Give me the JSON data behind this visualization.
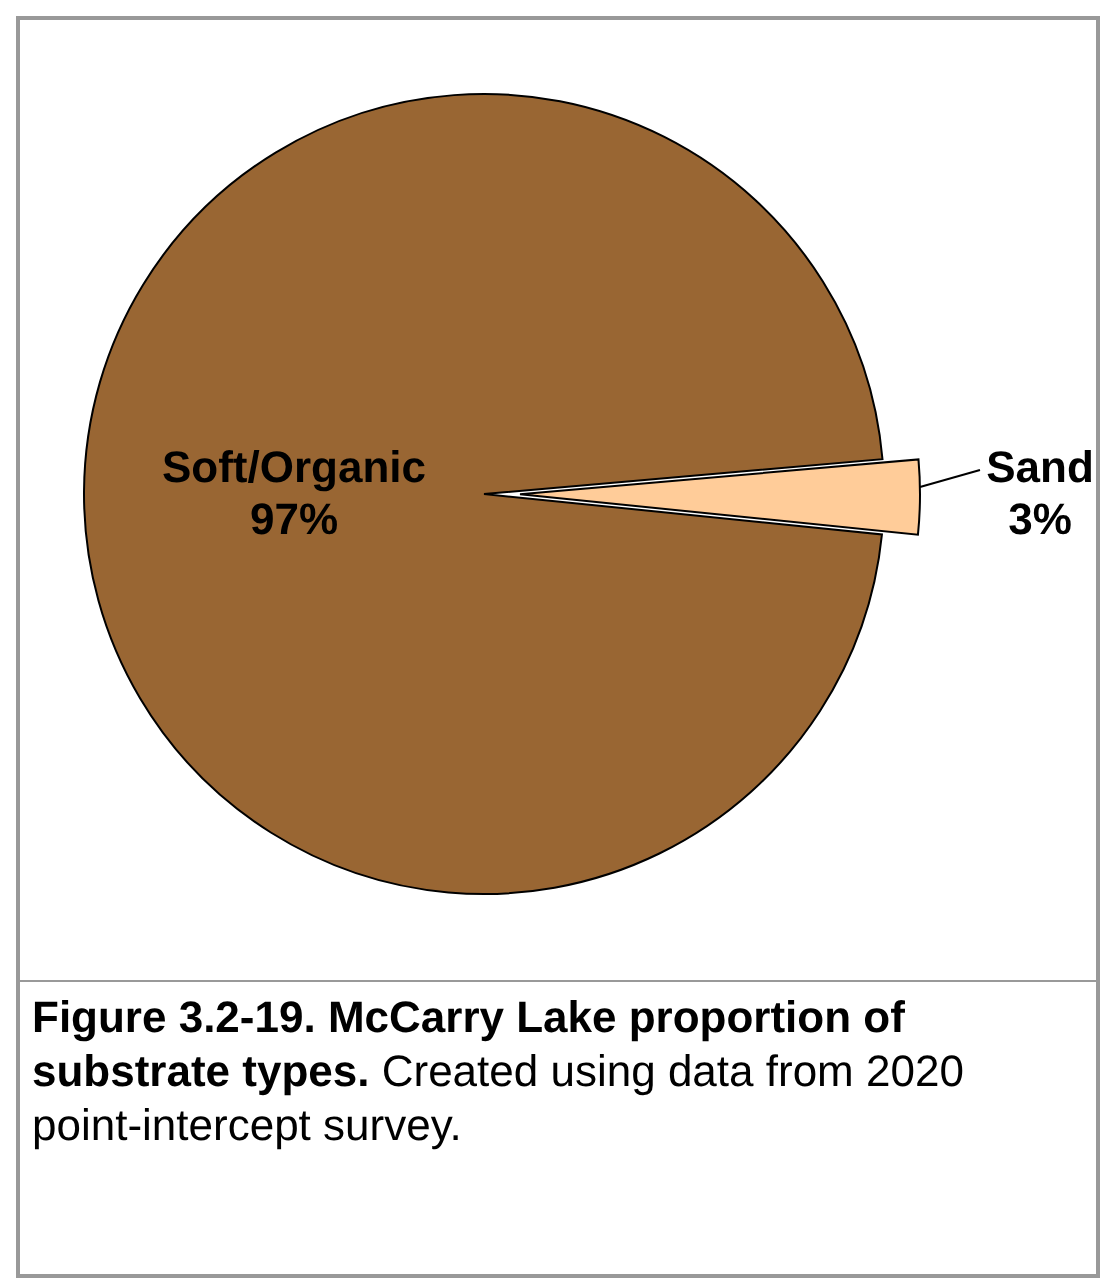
{
  "chart_data": {
    "type": "pie",
    "title": "Figure 3.2-19. McCarry Lake proportion of substrate types.",
    "annotations": [
      "Created using data from 2020 point-intercept survey."
    ],
    "categories": [
      "Soft/Organic",
      "Sand"
    ],
    "values": [
      97,
      3
    ],
    "colors": [
      "#996633",
      "#ffcc99"
    ],
    "value_labels": [
      "97%",
      "3%"
    ]
  }
}
